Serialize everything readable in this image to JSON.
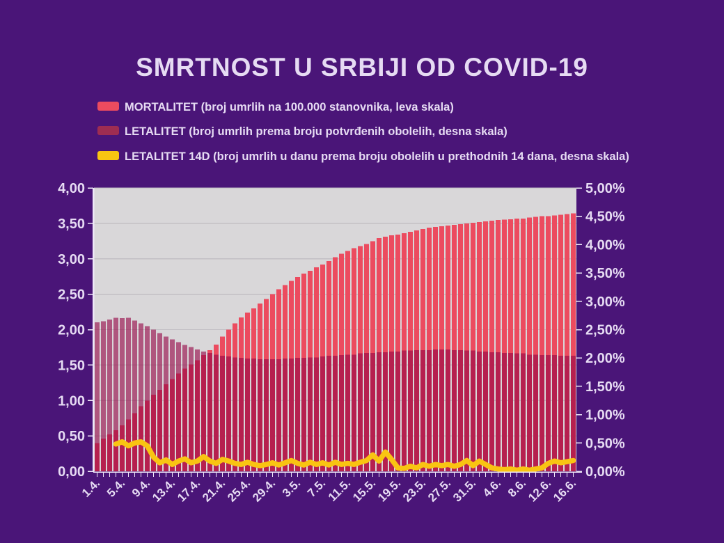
{
  "page": {
    "background_color": "#4a1578",
    "text_color": "#e6dbf3",
    "plot_background": "#d9d7d9",
    "gridline_color": "#c2bfc4",
    "axis_line_color": "#efe8f8"
  },
  "title": "SMRTNOST U SRBIJI OD COVID-19",
  "legend": [
    {
      "name": "MORTALITET",
      "label": "MORTALITET (broj umrlih na 100.000 stanovnika, leva skala)",
      "color": "#ec4b5f"
    },
    {
      "name": "LETALITET",
      "label": "LETALITET (broj umrlih prema broju potvrđenih obolelih, desna skala)",
      "color": "#9e2d52"
    },
    {
      "name": "LETALITET 14D",
      "label": "LETALITET 14D (broj umrlih u danu prema broju obolelih u prethodnih 14 dana, desna skala)",
      "color": "#f9c412"
    }
  ],
  "chart_data": {
    "type": "bar",
    "title": "SMRTNOST U SRBIJI OD COVID-19",
    "n_days": 77,
    "x_first_day": "1.4.",
    "x_last_day": "16.6.",
    "label_every": 4,
    "x_labels": [
      "1.4.",
      "5.4.",
      "9.4.",
      "13.4.",
      "17.4.",
      "21.4.",
      "25.4.",
      "29.4.",
      "3.5.",
      "7.5.",
      "11.5.",
      "15.5.",
      "19.5.",
      "23.5.",
      "27.5.",
      "31.5.",
      "4.6.",
      "8.6.",
      "12.6.",
      "16.6."
    ],
    "left_axis": {
      "min": 0,
      "max": 4,
      "step": 0.5,
      "tick_labels": [
        "4,00",
        "3,50",
        "3,00",
        "2,50",
        "2,00",
        "1,50",
        "1,00",
        "0,50",
        "0,00"
      ]
    },
    "right_axis": {
      "min": 0,
      "max": 5,
      "step": 0.5,
      "tick_labels": [
        "5,00%",
        "4,50%",
        "4,00%",
        "3,50%",
        "3,00%",
        "2,50%",
        "2,00%",
        "1,50%",
        "1,00%",
        "0,50%",
        "0,00%"
      ]
    },
    "grid": "horizontal-left-scale",
    "legend_position": "top-left",
    "series": [
      {
        "name": "MORTALITET",
        "type": "bar",
        "axis": "left",
        "color": "#ec4b5f",
        "start_day": 0,
        "values": [
          0.4,
          0.46,
          0.52,
          0.58,
          0.65,
          0.73,
          0.82,
          0.92,
          1.0,
          1.08,
          1.15,
          1.23,
          1.3,
          1.38,
          1.45,
          1.51,
          1.57,
          1.64,
          1.71,
          1.79,
          1.9,
          2.0,
          2.09,
          2.17,
          2.24,
          2.3,
          2.37,
          2.43,
          2.5,
          2.57,
          2.63,
          2.69,
          2.74,
          2.79,
          2.83,
          2.88,
          2.92,
          2.97,
          3.02,
          3.07,
          3.11,
          3.15,
          3.18,
          3.21,
          3.25,
          3.29,
          3.31,
          3.33,
          3.34,
          3.36,
          3.38,
          3.4,
          3.42,
          3.44,
          3.45,
          3.46,
          3.47,
          3.48,
          3.49,
          3.5,
          3.51,
          3.52,
          3.53,
          3.54,
          3.55,
          3.555,
          3.56,
          3.57,
          3.57,
          3.58,
          3.59,
          3.6,
          3.6,
          3.61,
          3.62,
          3.63,
          3.64
        ]
      },
      {
        "name": "LETALITET",
        "type": "bar-overlay",
        "axis": "right",
        "color": "rgba(148,6,70,0.62)",
        "start_day": 0,
        "values": [
          2.63,
          2.65,
          2.68,
          2.71,
          2.7,
          2.71,
          2.66,
          2.61,
          2.56,
          2.5,
          2.44,
          2.38,
          2.33,
          2.28,
          2.23,
          2.19,
          2.15,
          2.11,
          2.09,
          2.06,
          2.04,
          2.03,
          2.01,
          2.0,
          1.99,
          1.99,
          1.98,
          1.98,
          1.98,
          1.98,
          1.99,
          1.99,
          2.0,
          2.0,
          2.01,
          2.01,
          2.03,
          2.04,
          2.04,
          2.05,
          2.06,
          2.06,
          2.08,
          2.09,
          2.09,
          2.1,
          2.1,
          2.11,
          2.11,
          2.13,
          2.13,
          2.14,
          2.14,
          2.14,
          2.15,
          2.15,
          2.15,
          2.14,
          2.14,
          2.13,
          2.13,
          2.11,
          2.11,
          2.1,
          2.1,
          2.09,
          2.09,
          2.08,
          2.08,
          2.06,
          2.06,
          2.05,
          2.05,
          2.05,
          2.04,
          2.04,
          2.04
        ]
      },
      {
        "name": "LETALITET 14D",
        "type": "line",
        "axis": "right",
        "color": "#f9c412",
        "start_day": 3,
        "values": [
          0.48,
          0.52,
          0.45,
          0.5,
          0.52,
          0.45,
          0.25,
          0.15,
          0.2,
          0.12,
          0.18,
          0.22,
          0.15,
          0.18,
          0.26,
          0.18,
          0.14,
          0.21,
          0.18,
          0.14,
          0.12,
          0.16,
          0.12,
          0.1,
          0.12,
          0.15,
          0.11,
          0.15,
          0.19,
          0.14,
          0.11,
          0.16,
          0.12,
          0.15,
          0.11,
          0.16,
          0.12,
          0.14,
          0.12,
          0.16,
          0.19,
          0.29,
          0.18,
          0.34,
          0.21,
          0.06,
          0.05,
          0.09,
          0.06,
          0.12,
          0.09,
          0.12,
          0.1,
          0.12,
          0.09,
          0.12,
          0.19,
          0.1,
          0.18,
          0.12,
          0.06,
          0.04,
          0.03,
          0.04,
          0.02,
          0.04,
          0.02,
          0.04,
          0.06,
          0.14,
          0.18,
          0.15,
          0.17,
          0.19
        ]
      }
    ]
  }
}
